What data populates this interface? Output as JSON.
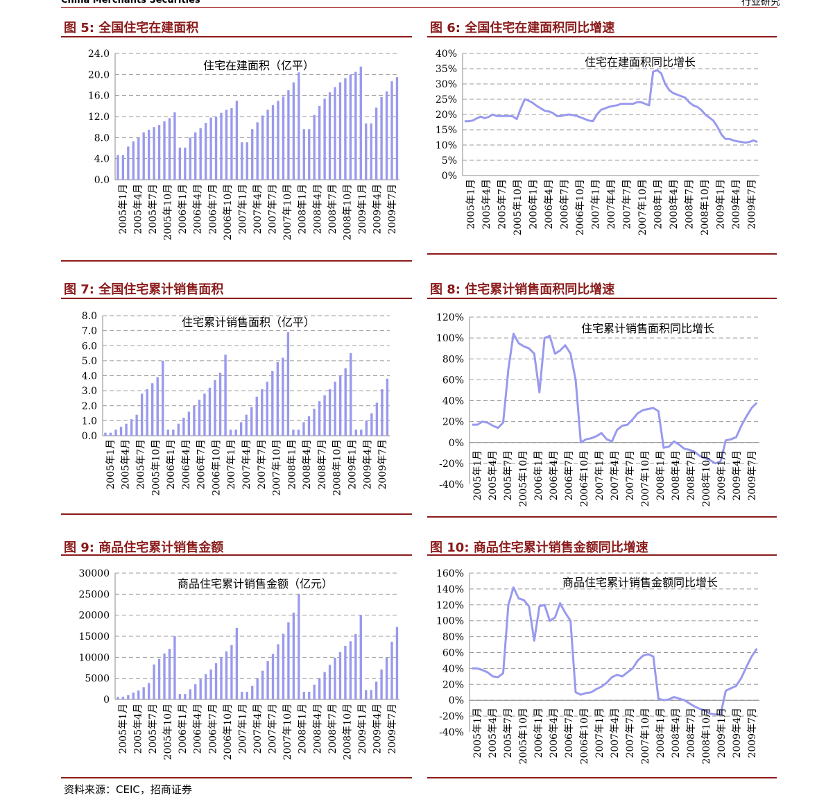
{
  "header": {
    "broker": "China Merchants Securities",
    "section": "行业研究"
  },
  "source": "资料来源：CEIC，招商证券",
  "figures": [
    {
      "id": "fig5",
      "title": "图 5:  全国住宅在建面积"
    },
    {
      "id": "fig6",
      "title": "图 6:  全国住宅在建面积同比增速"
    },
    {
      "id": "fig7",
      "title": "图 7:  全国住宅累计销售面积"
    },
    {
      "id": "fig8",
      "title": "图 8:  住宅累计销售面积同比增速"
    },
    {
      "id": "fig9",
      "title": "图 9:  商品住宅累计销售金额"
    },
    {
      "id": "fig10",
      "title": "图 10:  商品住宅累计销售金额同比增速"
    }
  ],
  "chart_data": [
    {
      "id": "fig5",
      "type": "bar",
      "title": "住宅在建面积（亿平）",
      "categories": [
        "2005年1月",
        "2005年2月",
        "2005年3月",
        "2005年4月",
        "2005年5月",
        "2005年6月",
        "2005年7月",
        "2005年8月",
        "2005年9月",
        "2005年10月",
        "2005年11月",
        "2005年12月",
        "2006年1月",
        "2006年2月",
        "2006年3月",
        "2006年4月",
        "2006年5月",
        "2006年6月",
        "2006年7月",
        "2006年8月",
        "2006年9月",
        "2006年10月",
        "2006年11月",
        "2006年12月",
        "2007年1月",
        "2007年2月",
        "2007年3月",
        "2007年4月",
        "2007年5月",
        "2007年6月",
        "2007年7月",
        "2007年8月",
        "2007年9月",
        "2007年10月",
        "2007年11月",
        "2007年12月",
        "2008年1月",
        "2008年2月",
        "2008年3月",
        "2008年4月",
        "2008年5月",
        "2008年6月",
        "2008年7月",
        "2008年8月",
        "2008年9月",
        "2008年10月",
        "2008年11月",
        "2008年12月",
        "2009年1月",
        "2009年2月",
        "2009年3月",
        "2009年4月",
        "2009年5月",
        "2009年6月",
        "2009年7月"
      ],
      "tick_labels": [
        "2005年1月",
        "2005年4月",
        "2005年7月",
        "2005年10月",
        "2006年1月",
        "2006年4月",
        "2006年7月",
        "2006年10月",
        "2007年1月",
        "2007年4月",
        "2007年7月",
        "2007年10月",
        "2008年1月",
        "2008年4月",
        "2008年7月",
        "2008年10月",
        "2009年1月",
        "2009年4月",
        "2009年7月"
      ],
      "values": [
        4.7,
        4.7,
        6.3,
        7.3,
        8.0,
        9.0,
        9.5,
        10.0,
        10.4,
        11.1,
        11.7,
        12.8,
        6.1,
        6.1,
        8.0,
        9.0,
        9.8,
        10.8,
        11.8,
        12.0,
        12.7,
        13.3,
        13.6,
        15.0,
        7.1,
        7.1,
        9.6,
        10.9,
        12.2,
        13.3,
        14.2,
        15.0,
        15.8,
        17.0,
        18.5,
        20.4,
        9.6,
        9.6,
        12.3,
        14.0,
        15.4,
        16.6,
        17.6,
        18.5,
        19.3,
        20.0,
        20.5,
        21.5,
        10.7,
        10.7,
        13.7,
        15.7,
        16.8,
        18.7,
        19.5
      ],
      "ylim": [
        0,
        24
      ],
      "yticks": [
        "0.0",
        "4.0",
        "8.0",
        "12.0",
        "16.0",
        "20.0",
        "24.0"
      ],
      "color": "#9999ee"
    },
    {
      "id": "fig6",
      "type": "line",
      "title": "住宅在建面积同比增长",
      "tick_labels": [
        "2005年1月",
        "2005年4月",
        "2005年7月",
        "2005年10月",
        "2006年1月",
        "2006年4月",
        "2006年7月",
        "2006年10月",
        "2007年1月",
        "2007年4月",
        "2007年7月",
        "2007年10月",
        "2008年1月",
        "2008年4月",
        "2008年7月",
        "2008年10月",
        "2009年1月",
        "2009年4月",
        "2009年7月"
      ],
      "values": [
        0.178,
        0.178,
        0.18,
        0.187,
        0.193,
        0.188,
        0.192,
        0.2,
        0.195,
        0.195,
        0.195,
        0.195,
        0.194,
        0.185,
        0.22,
        0.25,
        0.245,
        0.238,
        0.228,
        0.22,
        0.212,
        0.21,
        0.205,
        0.195,
        0.195,
        0.198,
        0.2,
        0.198,
        0.195,
        0.19,
        0.185,
        0.18,
        0.178,
        0.2,
        0.215,
        0.22,
        0.225,
        0.228,
        0.23,
        0.235,
        0.235,
        0.235,
        0.235,
        0.24,
        0.24,
        0.235,
        0.23,
        0.34,
        0.345,
        0.335,
        0.3,
        0.28,
        0.27,
        0.265,
        0.26,
        0.255,
        0.24,
        0.23,
        0.225,
        0.215,
        0.2,
        0.19,
        0.18,
        0.16,
        0.135,
        0.12,
        0.12,
        0.115,
        0.112,
        0.11,
        0.108,
        0.11,
        0.115,
        0.11
      ],
      "ylim": [
        0,
        0.4
      ],
      "yticks": [
        "0%",
        "5%",
        "10%",
        "15%",
        "20%",
        "25%",
        "30%",
        "35%",
        "40%"
      ],
      "color": "#9999ee"
    },
    {
      "id": "fig7",
      "type": "bar",
      "title": "住宅累计销售面积（亿平）",
      "tick_labels": [
        "2005年1月",
        "2005年4月",
        "2005年7月",
        "2005年10月",
        "2006年1月",
        "2006年4月",
        "2006年7月",
        "2006年10月",
        "2007年1月",
        "2007年4月",
        "2007年7月",
        "2007年10月",
        "2008年1月",
        "2008年4月",
        "2008年7月",
        "2008年10月",
        "2009年1月",
        "2009年4月",
        "2009年7月"
      ],
      "values": [
        0.2,
        0.2,
        0.4,
        0.6,
        0.8,
        1.1,
        1.4,
        2.8,
        3.1,
        3.5,
        3.9,
        5.0,
        0.4,
        0.4,
        0.8,
        1.2,
        1.6,
        2.0,
        2.4,
        2.8,
        3.2,
        3.7,
        4.2,
        5.4,
        0.4,
        0.4,
        0.9,
        1.4,
        1.9,
        2.6,
        3.1,
        3.6,
        4.3,
        4.9,
        5.2,
        6.9,
        0.4,
        0.4,
        0.9,
        1.3,
        1.8,
        2.3,
        2.7,
        3.1,
        3.6,
        4.0,
        4.5,
        5.5,
        0.4,
        0.4,
        1.0,
        1.5,
        2.2,
        3.1,
        3.8
      ],
      "ylim": [
        0,
        8
      ],
      "yticks": [
        "0.0",
        "1.0",
        "2.0",
        "3.0",
        "4.0",
        "5.0",
        "6.0",
        "7.0",
        "8.0"
      ],
      "color": "#9999ee"
    },
    {
      "id": "fig8",
      "type": "line",
      "title": "住宅累计销售面积同比增长",
      "tick_labels": [
        "2005年1月",
        "2005年4月",
        "2005年7月",
        "2005年10月",
        "2006年1月",
        "2006年4月",
        "2006年7月",
        "2006年10月",
        "2007年1月",
        "2007年4月",
        "2007年7月",
        "2007年10月",
        "2008年1月",
        "2008年4月",
        "2008年7月",
        "2008年10月",
        "2009年1月",
        "2009年4月",
        "2009年7月"
      ],
      "values": [
        17,
        17,
        20,
        19,
        16,
        14,
        19,
        70,
        104,
        95,
        92,
        90,
        85,
        48,
        100,
        102,
        85,
        88,
        93,
        85,
        60,
        0,
        3,
        4,
        6,
        9,
        3,
        1,
        12,
        16,
        17,
        22,
        28,
        31,
        32,
        33,
        30,
        -5,
        -4,
        1,
        -2,
        -6,
        -7,
        -9,
        -13,
        -15,
        -17,
        -20,
        -18,
        2,
        3,
        5,
        16,
        25,
        33,
        38
      ],
      "ylim": [
        -40,
        120
      ],
      "yticks": [
        "-40%",
        "-20%",
        "0%",
        "20%",
        "40%",
        "60%",
        "80%",
        "100%",
        "120%"
      ],
      "color": "#9999ee"
    },
    {
      "id": "fig9",
      "type": "bar",
      "title": "商品住宅累计销售金额（亿元）",
      "tick_labels": [
        "2005年1月",
        "2005年4月",
        "2005年7月",
        "2005年10月",
        "2006年1月",
        "2006年4月",
        "2006年7月",
        "2006年10月",
        "2007年1月",
        "2007年4月",
        "2007年7月",
        "2007年10月",
        "2008年1月",
        "2008年4月",
        "2008年7月",
        "2008年10月",
        "2009年1月",
        "2009年4月",
        "2009年7月"
      ],
      "values": [
        600,
        600,
        1000,
        1600,
        2100,
        2900,
        3900,
        8300,
        9600,
        10900,
        12000,
        15000,
        1300,
        1300,
        2400,
        3600,
        4800,
        6000,
        7100,
        8600,
        9900,
        11400,
        12900,
        17000,
        1800,
        1800,
        3200,
        5000,
        6800,
        9100,
        10800,
        13100,
        15600,
        18300,
        20600,
        25000,
        1800,
        1800,
        3500,
        5000,
        6500,
        8200,
        9900,
        11200,
        12700,
        13800,
        15500,
        20000,
        2200,
        2200,
        4200,
        7100,
        9900,
        13700,
        17200
      ],
      "ylim": [
        0,
        30000
      ],
      "yticks": [
        "0",
        "5000",
        "10000",
        "15000",
        "20000",
        "25000",
        "30000"
      ],
      "color": "#9999ee"
    },
    {
      "id": "fig10",
      "type": "line",
      "title": "商品住宅累计销售金额同比增长",
      "tick_labels": [
        "2005年1月",
        "2005年4月",
        "2005年7月",
        "2005年10月",
        "2006年1月",
        "2006年4月",
        "2006年7月",
        "2006年10月",
        "2007年1月",
        "2007年4月",
        "2007年7月",
        "2007年10月",
        "2008年1月",
        "2008年4月",
        "2008年7月",
        "2008年10月",
        "2009年1月",
        "2009年4月",
        "2009年7月"
      ],
      "values": [
        40,
        40,
        38,
        35,
        30,
        29,
        34,
        120,
        142,
        128,
        126,
        118,
        75,
        118,
        120,
        100,
        104,
        122,
        110,
        100,
        10,
        7,
        9,
        10,
        14,
        17,
        22,
        29,
        32,
        30,
        35,
        40,
        50,
        56,
        58,
        55,
        2,
        0,
        1,
        4,
        2,
        0,
        -4,
        -8,
        -11,
        -13,
        -17,
        -18,
        -18,
        12,
        15,
        18,
        28,
        42,
        55,
        65
      ],
      "ylim": [
        -40,
        160
      ],
      "yticks": [
        "-40%",
        "-20%",
        "0%",
        "20%",
        "40%",
        "60%",
        "80%",
        "100%",
        "120%",
        "140%",
        "160%"
      ],
      "color": "#9999ee"
    }
  ]
}
